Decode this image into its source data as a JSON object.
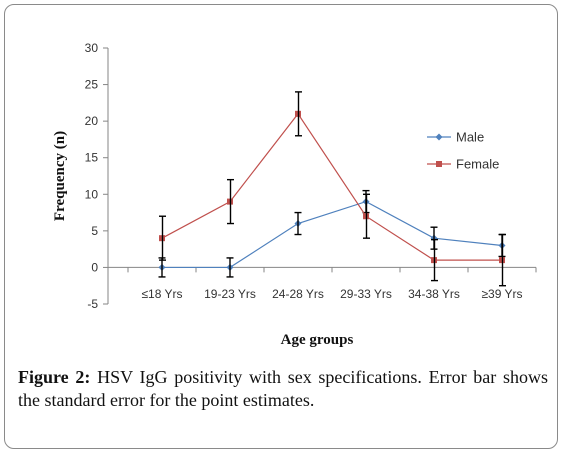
{
  "caption": {
    "label": "Figure 2:",
    "text": "HSV IgG positivity with sex specifications. Error bar shows the standard error for the point estimates."
  },
  "chart_data": {
    "type": "line",
    "title": "",
    "xlabel": "Age groups",
    "ylabel": "Frequency (n)",
    "categories": [
      "≤18 Yrs",
      "19-23 Yrs",
      "24-28 Yrs",
      "29-33 Yrs",
      "34-38 Yrs",
      "≥39 Yrs"
    ],
    "ylim": [
      -5,
      30
    ],
    "yticks": [
      -5,
      0,
      5,
      10,
      15,
      20,
      25,
      30
    ],
    "grid": false,
    "legend_position": "right",
    "series": [
      {
        "name": "Male",
        "color": "#4f81bd",
        "marker": "diamond",
        "values": [
          0,
          0,
          6,
          9,
          4,
          3
        ],
        "error": [
          1.3,
          1.3,
          1.5,
          1.5,
          1.5,
          1.5
        ]
      },
      {
        "name": "Female",
        "color": "#c0504d",
        "marker": "square",
        "values": [
          4,
          9,
          21,
          7,
          1,
          1
        ],
        "error": [
          3,
          3,
          3,
          3,
          2.8,
          3.5
        ]
      }
    ]
  }
}
